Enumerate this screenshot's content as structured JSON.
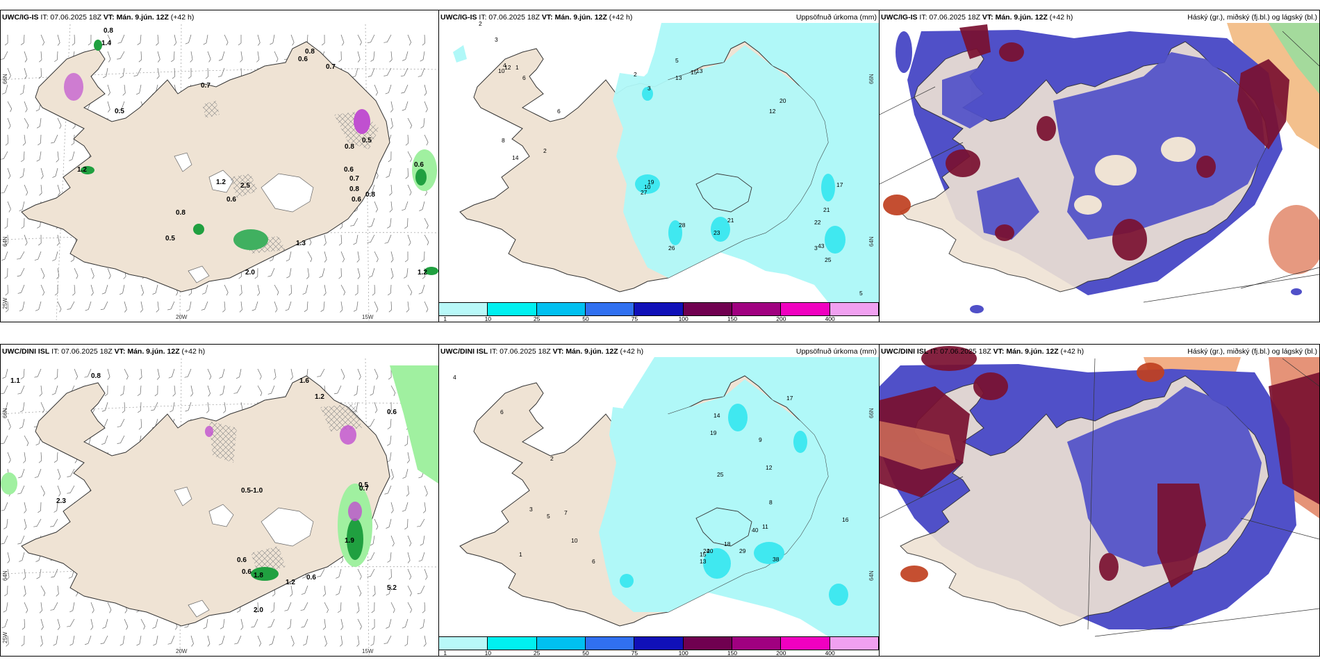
{
  "panels": [
    {
      "model": "UWC/IG-IS",
      "it": "IT: 07.06.2025 18Z",
      "vt_prefix": "VT:",
      "vt": "Mán. 9.jún. 12Z",
      "lead": "(+42 h)",
      "right_title": ""
    },
    {
      "model": "UWC/IG-IS",
      "it": "IT: 07.06.2025 18Z",
      "vt_prefix": "VT:",
      "vt": "Mán. 9.jún. 12Z",
      "lead": "(+42 h)",
      "right_title": "Uppsöfnuð úrkoma (mm)"
    },
    {
      "model": "UWC/IG-IS",
      "it": "IT: 07.06.2025 18Z",
      "vt_prefix": "VT:",
      "vt": "Mán. 9.jún. 12Z",
      "lead": "(+42 h)",
      "right_title": "Háský (gr.), miðský (fj.bl.) og lágský (bl.)"
    },
    {
      "model": "UWC/DINI ISL",
      "it": "IT: 07.06.2025 18Z",
      "vt_prefix": "VT:",
      "vt": "Mán. 9.jún. 12Z",
      "lead": "(+42 h)",
      "right_title": ""
    },
    {
      "model": "UWC/DINI ISL",
      "it": "IT: 07.06.2025 18Z",
      "vt_prefix": "VT:",
      "vt": "Mán. 9.jún. 12Z",
      "lead": "(+42 h)",
      "right_title": "Uppsöfnuð úrkoma (mm)"
    },
    {
      "model": "UWC/DINI ISL",
      "it": "IT: 07.06.2025 18Z",
      "vt_prefix": "VT:",
      "vt": "Mán. 9.jún. 12Z",
      "lead": "(+42 h)",
      "right_title": "Háský (gr.), miðský (fj.bl.) og lágský (bl.)"
    }
  ],
  "axes": {
    "lon_20": "20W",
    "lon_15": "15W",
    "lat_66": "66N",
    "lat_64": "64N",
    "lon_25": "25W"
  },
  "colorbar": {
    "labels": [
      "1",
      "10",
      "25",
      "50",
      "75",
      "100",
      "150",
      "200",
      "400"
    ],
    "colors": [
      "#b8f8f8",
      "#00f0f0",
      "#00c0f0",
      "#3070f0",
      "#1010b8",
      "#700050",
      "#a00080",
      "#f000c0",
      "#f0a0f0"
    ]
  },
  "colors": {
    "land": "#efe3d4",
    "precip": "#b0f8f8",
    "precip_mid": "#40e8f0",
    "cloud_low": "#5050c8",
    "cloud_mid": "#7a1030",
    "cloud_high": "#e07040",
    "green": "#a0f0a0"
  },
  "labels_top_left": [
    "0.8",
    "0.6",
    "0.7",
    "0.5",
    "0.5",
    "0.7",
    "0.8",
    "1.2",
    "0.6",
    "0.8",
    "0.8",
    "0.5",
    "0.7",
    "0.6",
    "0.8",
    "0.8",
    "2.0",
    "1.2",
    "0.6",
    "1.4",
    "2.5",
    "1.3",
    "0.6",
    "1.2"
  ],
  "labels_bottom_left": [
    "0.8",
    "1.1",
    "1.6",
    "1.2",
    "0.5-1.0",
    "0.6",
    "2.3",
    "0.6",
    "0.5",
    "0.7",
    "0.6",
    "0.6",
    "1.2",
    "5.2",
    "2.0",
    "1.8",
    "1.9"
  ],
  "labels_top_mid": [
    "2",
    "3",
    "10",
    "12",
    "4",
    "6",
    "13",
    "5",
    "2",
    "3",
    "1",
    "2",
    "6",
    "8",
    "14",
    "10",
    "19",
    "27",
    "28",
    "23",
    "21",
    "26",
    "13",
    "15",
    "20",
    "12",
    "17",
    "21",
    "22",
    "43",
    "25",
    "3",
    "5"
  ],
  "labels_bottom_mid": [
    "4",
    "6",
    "2",
    "3",
    "1",
    "5",
    "7",
    "15",
    "13",
    "20",
    "18",
    "24",
    "29",
    "40",
    "38",
    "25",
    "14",
    "19",
    "17",
    "9",
    "12",
    "8",
    "11",
    "6",
    "10",
    "16"
  ]
}
